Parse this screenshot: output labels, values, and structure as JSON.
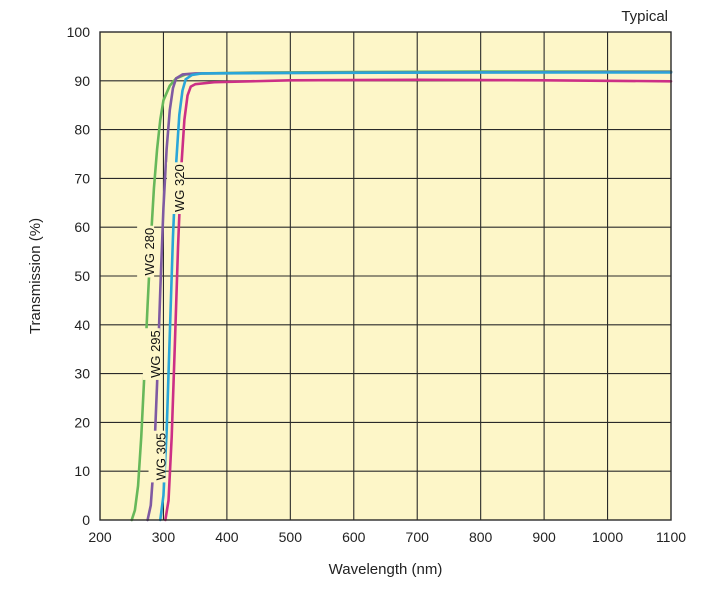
{
  "chart_data": {
    "type": "line",
    "title": "",
    "note": "Typical",
    "xlabel": "Wavelength (nm)",
    "ylabel": "Transmission (%)",
    "xlim": [
      200,
      1100
    ],
    "ylim": [
      0,
      100
    ],
    "xticks": [
      200,
      300,
      400,
      500,
      600,
      700,
      800,
      900,
      1000,
      1100
    ],
    "yticks": [
      0,
      10,
      20,
      30,
      40,
      50,
      60,
      70,
      80,
      90,
      100
    ],
    "grid": true,
    "plot_background": "#fdf6c8",
    "grid_color": "#2a2a2a",
    "series": [
      {
        "name": "WG 280",
        "color": "#67b85a",
        "points": [
          [
            250,
            0
          ],
          [
            255,
            2
          ],
          [
            260,
            7
          ],
          [
            265,
            17
          ],
          [
            270,
            30
          ],
          [
            275,
            44
          ],
          [
            280,
            57
          ],
          [
            285,
            68
          ],
          [
            290,
            76
          ],
          [
            295,
            82
          ],
          [
            300,
            86
          ],
          [
            310,
            89
          ],
          [
            320,
            90.5
          ],
          [
            335,
            91.3
          ],
          [
            360,
            91.5
          ],
          [
            450,
            91.7
          ],
          [
            600,
            91.8
          ],
          [
            800,
            91.9
          ],
          [
            1000,
            91.9
          ],
          [
            1100,
            91.9
          ]
        ]
      },
      {
        "name": "WG 295",
        "color": "#7f5aa2",
        "points": [
          [
            275,
            0
          ],
          [
            280,
            3
          ],
          [
            285,
            12
          ],
          [
            290,
            28
          ],
          [
            295,
            47
          ],
          [
            300,
            64
          ],
          [
            305,
            76
          ],
          [
            310,
            84
          ],
          [
            315,
            88.5
          ],
          [
            320,
            90.5
          ],
          [
            330,
            91.3
          ],
          [
            350,
            91.5
          ],
          [
            450,
            91.6
          ],
          [
            700,
            91.7
          ],
          [
            1100,
            91.8
          ]
        ]
      },
      {
        "name": "WG 305",
        "color": "#2aa6d8",
        "points": [
          [
            295,
            0
          ],
          [
            300,
            5
          ],
          [
            305,
            18
          ],
          [
            310,
            38
          ],
          [
            315,
            58
          ],
          [
            320,
            73
          ],
          [
            325,
            83
          ],
          [
            330,
            88
          ],
          [
            335,
            90.3
          ],
          [
            345,
            91.2
          ],
          [
            360,
            91.5
          ],
          [
            500,
            91.6
          ],
          [
            800,
            91.7
          ],
          [
            1100,
            91.7
          ]
        ]
      },
      {
        "name": "WG 320",
        "color": "#cc2f86",
        "points": [
          [
            303,
            0
          ],
          [
            308,
            4
          ],
          [
            313,
            17
          ],
          [
            318,
            36
          ],
          [
            323,
            56
          ],
          [
            328,
            72
          ],
          [
            333,
            82
          ],
          [
            338,
            87
          ],
          [
            343,
            88.8
          ],
          [
            350,
            89.3
          ],
          [
            380,
            89.7
          ],
          [
            500,
            90.1
          ],
          [
            700,
            90.2
          ],
          [
            900,
            90.1
          ],
          [
            1100,
            89.9
          ]
        ]
      }
    ],
    "labels": [
      {
        "series": "WG 280",
        "x": 279,
        "y": 55,
        "rotation": -90
      },
      {
        "series": "WG 295",
        "x": 288,
        "y": 34,
        "rotation": -90
      },
      {
        "series": "WG 305",
        "x": 297,
        "y": 13,
        "rotation": -90
      },
      {
        "series": "WG 320",
        "x": 326,
        "y": 68,
        "rotation": -90
      }
    ]
  }
}
